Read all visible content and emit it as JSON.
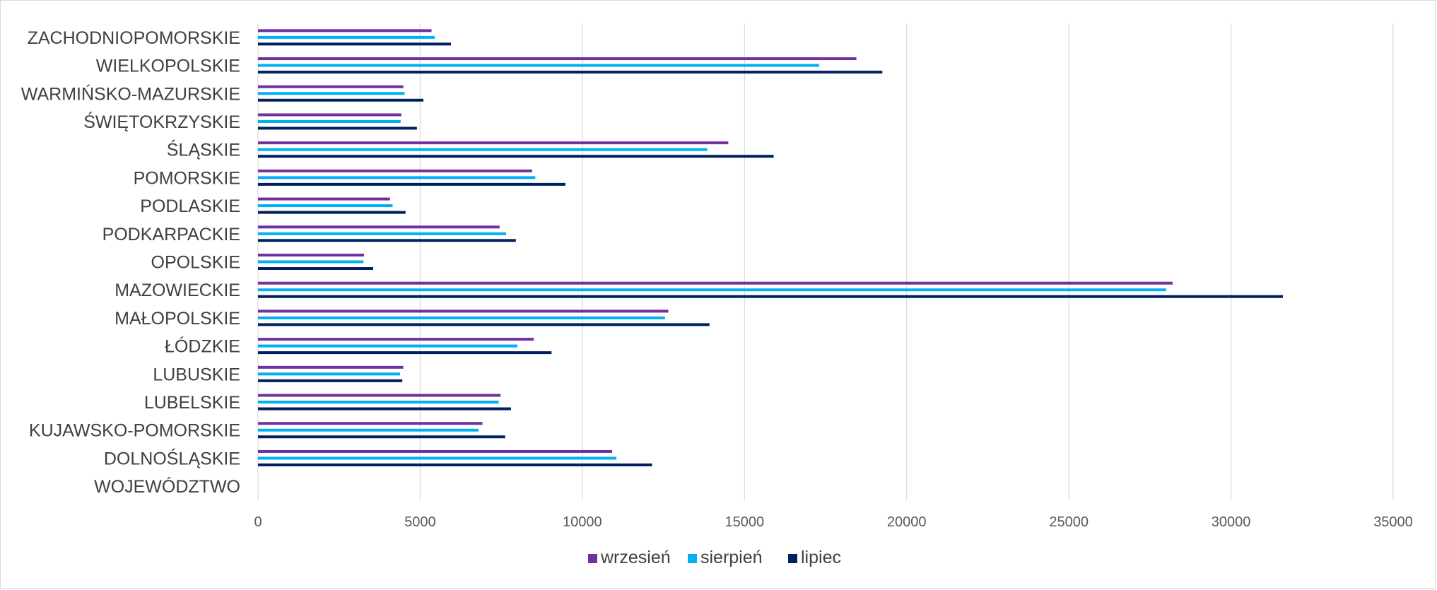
{
  "chart_data": {
    "type": "bar",
    "orientation": "horizontal",
    "categories": [
      "ZACHODNIOPOMORSKIE",
      "WIELKOPOLSKIE",
      "WARMIŃSKO-MAZURSKIE",
      "ŚWIĘTOKRZYSKIE",
      "ŚLĄSKIE",
      "POMORSKIE",
      "PODLASKIE",
      "PODKARPACKIE",
      "OPOLSKIE",
      "MAZOWIECKIE",
      "MAŁOPOLSKIE",
      "ŁÓDZKIE",
      "LUBUSKIE",
      "LUBELSKIE",
      "KUJAWSKO-POMORSKIE",
      "DOLNOŚLĄSKIE",
      "WOJEWÓDZTWO"
    ],
    "series": [
      {
        "name": "wrzesień",
        "color": "#7030a0",
        "values": [
          5350,
          18450,
          4480,
          4420,
          14500,
          8450,
          4070,
          7450,
          3270,
          28200,
          12650,
          8500,
          4480,
          7480,
          6920,
          10920,
          null
        ]
      },
      {
        "name": "sierpień",
        "color": "#00b0f0",
        "values": [
          5450,
          17300,
          4520,
          4400,
          13850,
          8550,
          4150,
          7650,
          3250,
          28000,
          12550,
          8000,
          4380,
          7420,
          6800,
          11050,
          null
        ]
      },
      {
        "name": "lipiec",
        "color": "#002060",
        "values": [
          5950,
          19250,
          5100,
          4900,
          15900,
          9480,
          4550,
          7950,
          3550,
          31600,
          13920,
          9050,
          4450,
          7800,
          7620,
          12150,
          null
        ]
      }
    ],
    "xlim": [
      0,
      35000
    ],
    "xticks": [
      "0",
      "5000",
      "10000",
      "15000",
      "20000",
      "25000",
      "30000",
      "35000"
    ],
    "grid": true,
    "legend_position": "bottom",
    "title": "",
    "xlabel": "",
    "ylabel": ""
  }
}
